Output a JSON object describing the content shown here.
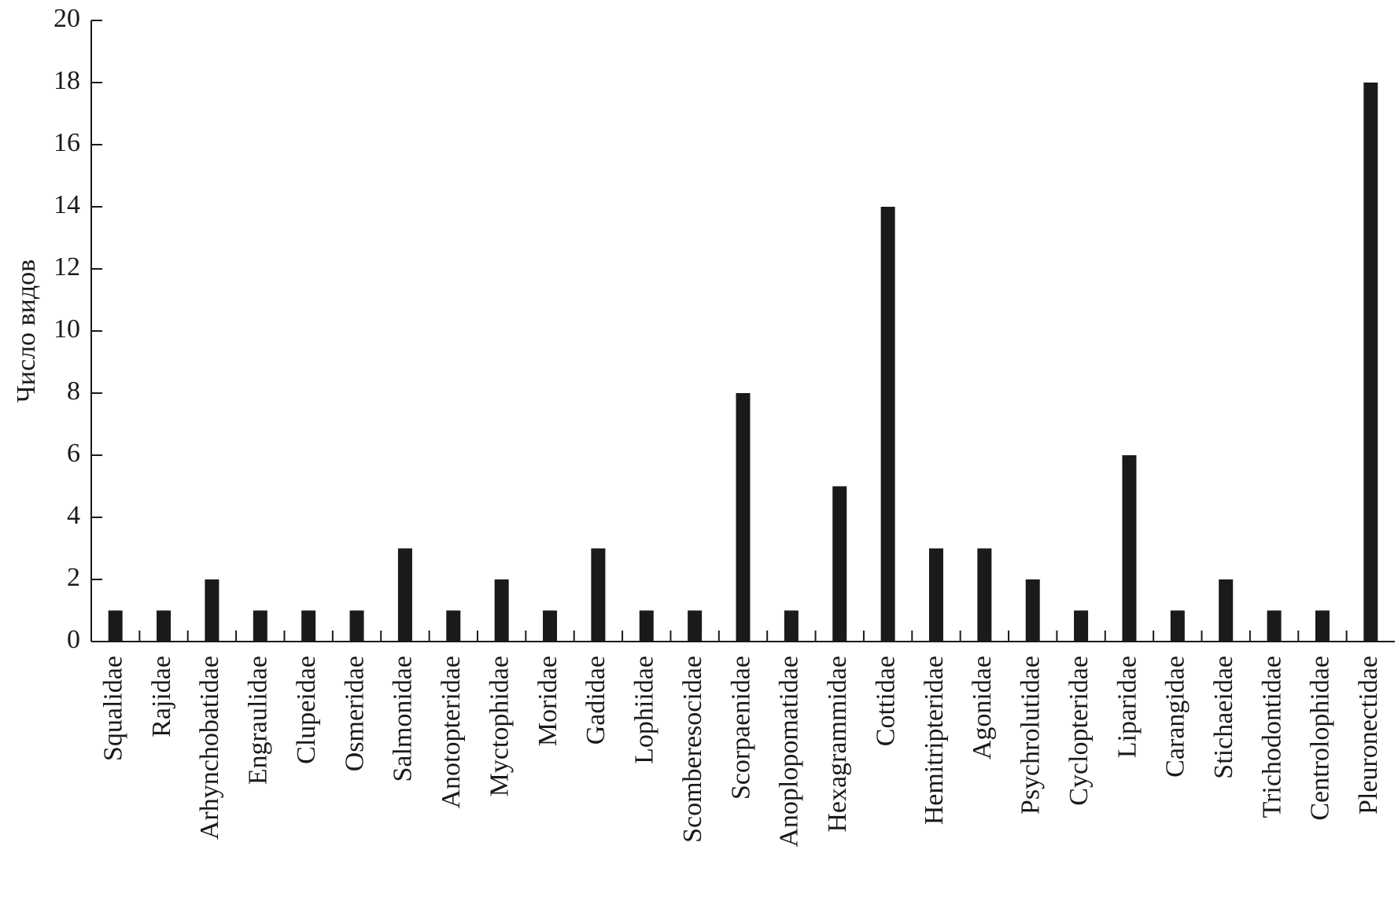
{
  "chart_data": {
    "type": "bar",
    "y_label": "Число видов",
    "categories": [
      "Squalidae",
      "Rajidae",
      "Arhynchobatidae",
      "Engraulidae",
      "Clupeidae",
      "Osmeridae",
      "Salmonidae",
      "Anotopteridae",
      "Myctophidae",
      "Moridae",
      "Gadidae",
      "Lophiidae",
      "Scomberesocidae",
      "Scorpaenidae",
      "Anoplopomatidae",
      "Hexagrammidae",
      "Cottidae",
      "Hemitripteridae",
      "Agonidae",
      "Psychrolutidae",
      "Cyclopteridae",
      "Liparidae",
      "Carangidae",
      "Stichaeidae",
      "Trichodontidae",
      "Centrolophidae",
      "Pleuronectidae"
    ],
    "values": [
      1,
      1,
      2,
      1,
      1,
      1,
      3,
      1,
      2,
      1,
      3,
      1,
      1,
      8,
      1,
      5,
      14,
      3,
      3,
      2,
      1,
      6,
      1,
      2,
      1,
      1,
      18
    ],
    "color": "#1a1a1a",
    "ylim": [
      0,
      20
    ],
    "yticks": [
      0,
      2,
      4,
      6,
      8,
      10,
      12,
      14,
      16,
      18,
      20
    ],
    "grid": false
  }
}
